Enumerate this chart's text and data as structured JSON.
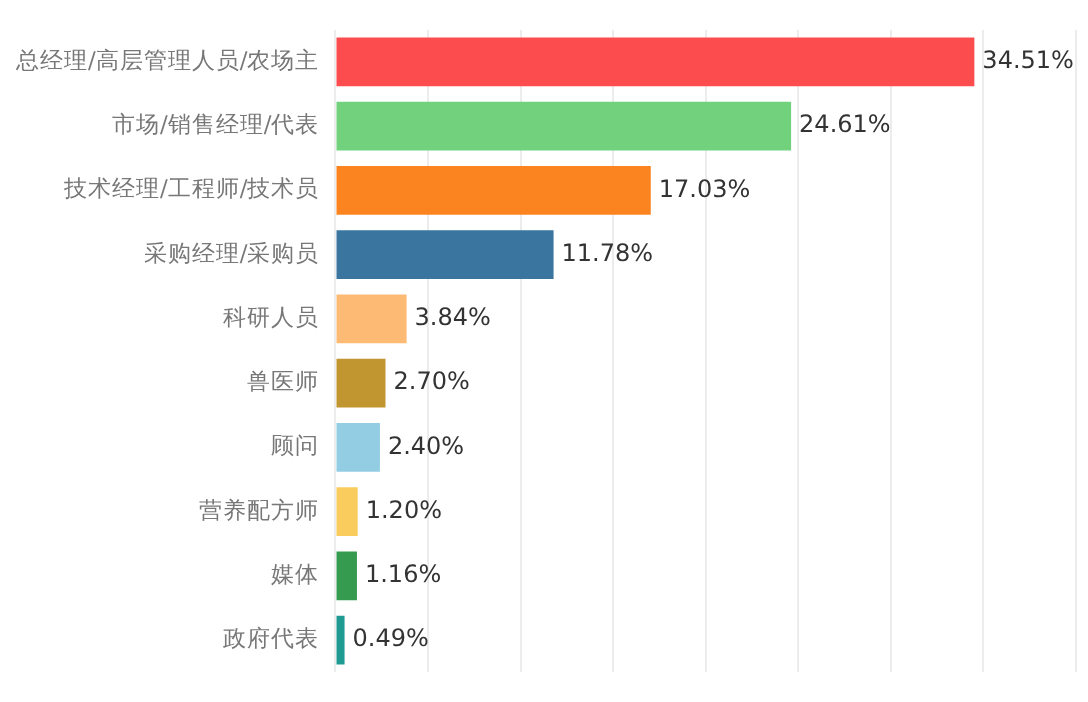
{
  "chart_data": {
    "type": "bar",
    "orientation": "horizontal",
    "categories": [
      "总经理/高层管理人员/农场主",
      "市场/销售经理/代表",
      "技术经理/工程师/技术员",
      "采购经理/采购员",
      "科研人员",
      "兽医师",
      "顾问",
      "营养配方师",
      "媒体",
      "政府代表"
    ],
    "values": [
      34.51,
      24.61,
      17.03,
      11.78,
      3.84,
      2.7,
      2.4,
      1.2,
      1.16,
      0.49
    ],
    "colors": [
      "#fc4c4e",
      "#72d17c",
      "#fb8420",
      "#3a75a0",
      "#fdba74",
      "#c1952f",
      "#92cde4",
      "#f9cc5d",
      "#359b4f",
      "#1f9a93"
    ],
    "value_labels": [
      "34.51%",
      "24.61%",
      "17.03%",
      "11.78%",
      "3.84%",
      "2.70%",
      "2.40%",
      "1.20%",
      "1.16%",
      "0.49%"
    ],
    "xlim": [
      0,
      40
    ],
    "xticks": [
      {
        "value": 0,
        "label": null
      },
      {
        "value": 5,
        "label": null
      },
      {
        "value": 10,
        "label": null
      },
      {
        "value": 15,
        "label": null
      },
      {
        "value": 20,
        "label": null
      },
      {
        "value": 25,
        "label": null
      },
      {
        "value": 30,
        "label": null
      },
      {
        "value": 35,
        "label": null
      },
      {
        "value": 40,
        "label": null
      }
    ],
    "tick_labels": "y",
    "grid": "x",
    "legend": false
  }
}
